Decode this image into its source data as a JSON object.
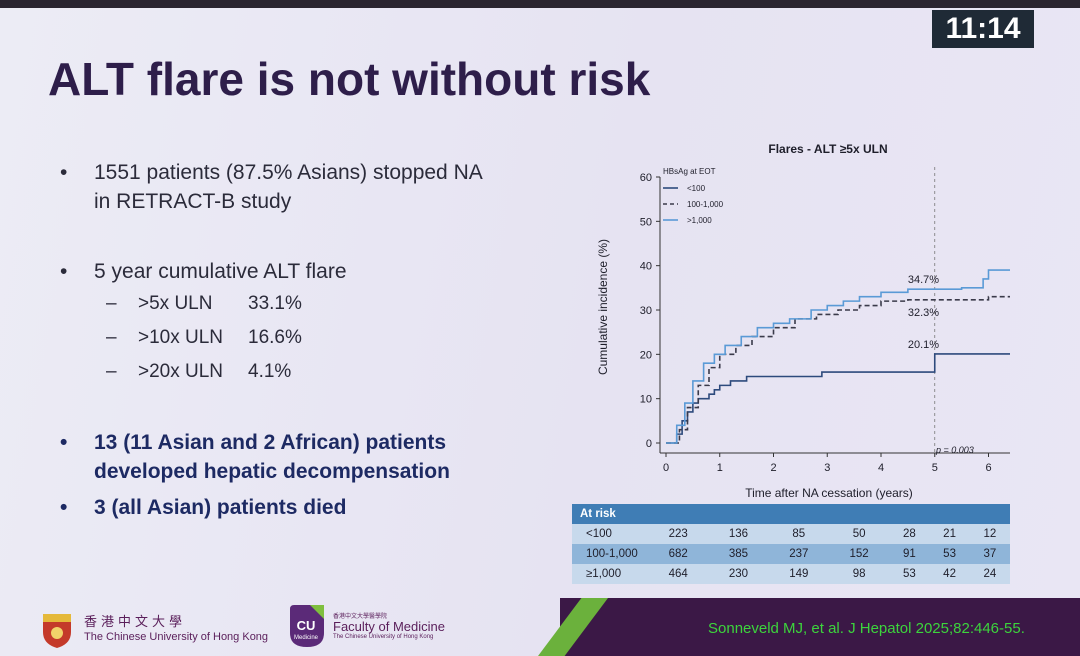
{
  "clock": "11:14",
  "title": "ALT flare is not without risk",
  "bullets": {
    "b1_line1": "1551 patients (87.5% Asians) stopped NA",
    "b1_line2": "in RETRACT-B study",
    "b2": "5 year cumulative ALT flare",
    "sub": [
      {
        "label": ">5x ULN",
        "value": "33.1%"
      },
      {
        "label": ">10x ULN",
        "value": "16.6%"
      },
      {
        "label": ">20x ULN",
        "value": "4.1%"
      }
    ],
    "b3_line1": "13 (11 Asian and 2 African) patients",
    "b3_line2": "developed hepatic decompensation",
    "b4": "3 (all Asian) patients died",
    "bullet_symbol": "•",
    "dash_symbol": "–"
  },
  "chart_data": {
    "type": "line",
    "title": "Flares - ALT ≥5x ULN",
    "xlabel": "Time after NA cessation (years)",
    "ylabel": "Cumulative incidence (%)",
    "xlim": [
      0,
      6.4
    ],
    "ylim": [
      0,
      60
    ],
    "xticks": [
      "0",
      "1",
      "2",
      "3",
      "4",
      "5",
      "6"
    ],
    "yticks": [
      "0",
      "10",
      "20",
      "30",
      "40",
      "50",
      "60"
    ],
    "legend_title": "HBsAg at EOT",
    "legend_position": "top-left",
    "vline_x": 5,
    "p_value": "p = 0.003",
    "series": [
      {
        "name": "<100",
        "color": "#2d4a7c",
        "dash": "solid",
        "x": [
          0,
          0.15,
          0.2,
          0.3,
          0.4,
          0.5,
          0.6,
          0.7,
          0.8,
          0.9,
          1.0,
          1.2,
          1.5,
          2.0,
          2.5,
          2.9,
          3.3,
          4.0,
          4.5,
          4.95,
          5.0,
          5.5,
          6.0,
          6.4
        ],
        "y": [
          0,
          0,
          2,
          5,
          7,
          9,
          10,
          10,
          11,
          12,
          13,
          14,
          15,
          15,
          15,
          16,
          16,
          16,
          16,
          16,
          20.1,
          20.1,
          20.1,
          20.1
        ],
        "end_label": "20.1%"
      },
      {
        "name": "100-1,000",
        "color": "#3a3a4a",
        "dash": "dashed",
        "x": [
          0,
          0.15,
          0.25,
          0.4,
          0.6,
          0.8,
          1.0,
          1.3,
          1.6,
          2.0,
          2.4,
          2.8,
          3.2,
          3.6,
          4.0,
          4.5,
          5.0,
          5.5,
          6.0,
          6.4
        ],
        "y": [
          0,
          0,
          3,
          8,
          13,
          17,
          20,
          22,
          24,
          26,
          28,
          29,
          30,
          31,
          32,
          32.3,
          32.3,
          32.3,
          33,
          33
        ],
        "end_label": "32.3%"
      },
      {
        "name": ">1,000",
        "color": "#5a9ad6",
        "dash": "solid",
        "x": [
          0,
          0.1,
          0.2,
          0.35,
          0.5,
          0.7,
          0.9,
          1.1,
          1.4,
          1.7,
          2.0,
          2.3,
          2.7,
          3.0,
          3.3,
          3.6,
          4.0,
          4.5,
          5.0,
          5.5,
          5.9,
          6.0,
          6.4
        ],
        "y": [
          0,
          0,
          4,
          9,
          14,
          18,
          20,
          22,
          24,
          26,
          27,
          28,
          30,
          31,
          32,
          33,
          34,
          34.7,
          34.7,
          35,
          37,
          39,
          39
        ],
        "end_label": "34.7%"
      }
    ]
  },
  "risk_table": {
    "header": "At risk",
    "rows": [
      {
        "label": "<100",
        "values": [
          "223",
          "136",
          "85",
          "50",
          "28",
          "21",
          "12"
        ]
      },
      {
        "label": "100-1,000",
        "values": [
          "682",
          "385",
          "237",
          "152",
          "91",
          "53",
          "37"
        ]
      },
      {
        "label": "≥1,000",
        "values": [
          "464",
          "230",
          "149",
          "98",
          "53",
          "42",
          "24"
        ]
      }
    ]
  },
  "footer": {
    "cuhk_chinese": "香港中文大學",
    "cuhk_english": "The Chinese University of Hong Kong",
    "cu_logo_text": "CU",
    "cu_logo_sub": "Medicine",
    "fom_chinese": "香港中文大學醫學院",
    "fom_english": "Faculty of Medicine",
    "fom_sub": "The Chinese University of Hong Kong",
    "citation": "Sonneveld MJ, et al. J Hepatol 2025;82:446-55."
  },
  "colors": {
    "title": "#2e1e4a",
    "bold_text": "#1d2a63",
    "footer_band": "#3b1846",
    "green_stripe": "#6bb13c",
    "citation": "#3cd43c"
  }
}
